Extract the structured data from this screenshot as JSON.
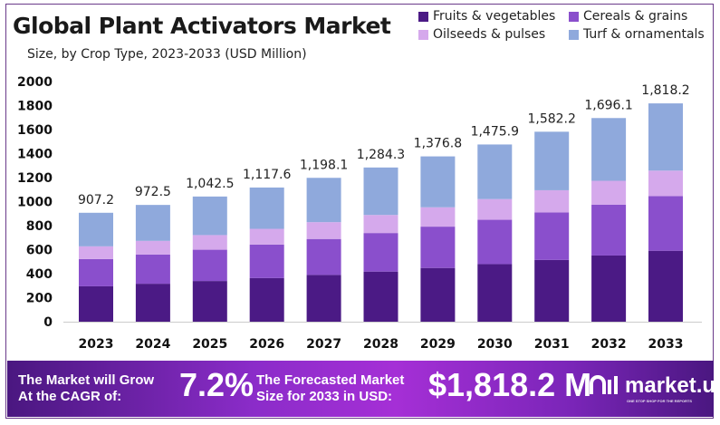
{
  "chart_data": {
    "type": "bar",
    "stacked": true,
    "title": "Global Plant Activators Market",
    "subtitle": "Size, by Crop Type, 2023-2033 (USD Million)",
    "categories": [
      "2023",
      "2024",
      "2025",
      "2026",
      "2027",
      "2028",
      "2029",
      "2030",
      "2031",
      "2032",
      "2033"
    ],
    "totals": [
      "907.2",
      "972.5",
      "1,042.5",
      "1,117.6",
      "1,198.1",
      "1,284.3",
      "1,376.8",
      "1,475.9",
      "1,582.2",
      "1,696.1",
      "1,818.2"
    ],
    "series": [
      {
        "name": "Fruits & vegetables",
        "color": "#4b1a85",
        "values": [
          294.8,
          316.1,
          338.8,
          363.2,
          389.4,
          417.4,
          447.5,
          479.7,
          514.2,
          551.2,
          590.9
        ]
      },
      {
        "name": "Cereals & grains",
        "color": "#8a4fcc",
        "values": [
          226.8,
          243.1,
          260.6,
          279.4,
          299.5,
          321.1,
          344.2,
          369.0,
          395.6,
          424.0,
          454.6
        ]
      },
      {
        "name": "Oilseeds & pulses",
        "color": "#d5a9ec",
        "values": [
          106.1,
          113.8,
          122.0,
          130.8,
          140.2,
          150.3,
          161.1,
          172.7,
          185.1,
          198.4,
          212.7
        ]
      },
      {
        "name": "Turf & ornamentals",
        "color": "#8fa9dc",
        "values": [
          279.5,
          299.5,
          321.1,
          344.2,
          369.0,
          395.5,
          424.0,
          454.5,
          487.3,
          522.5,
          560.0
        ]
      }
    ],
    "yticks": [
      "0",
      "200",
      "400",
      "600",
      "800",
      "1000",
      "1200",
      "1400",
      "1600",
      "1800",
      "2000"
    ],
    "ylim": [
      0,
      2000
    ],
    "grid": false,
    "legend": "top-right"
  },
  "banner": {
    "cagr_label_1": "The Market will Grow",
    "cagr_label_2": "At the CAGR of:",
    "cagr_value": "7.2%",
    "forecast_label_1": "The Forecasted Market",
    "forecast_label_2": "Size for 2033 in USD:",
    "forecast_value": "$1,818.2 M",
    "logo": "market.us",
    "logo_tagline": "ONE STOP SHOP FOR THE REPORTS"
  }
}
